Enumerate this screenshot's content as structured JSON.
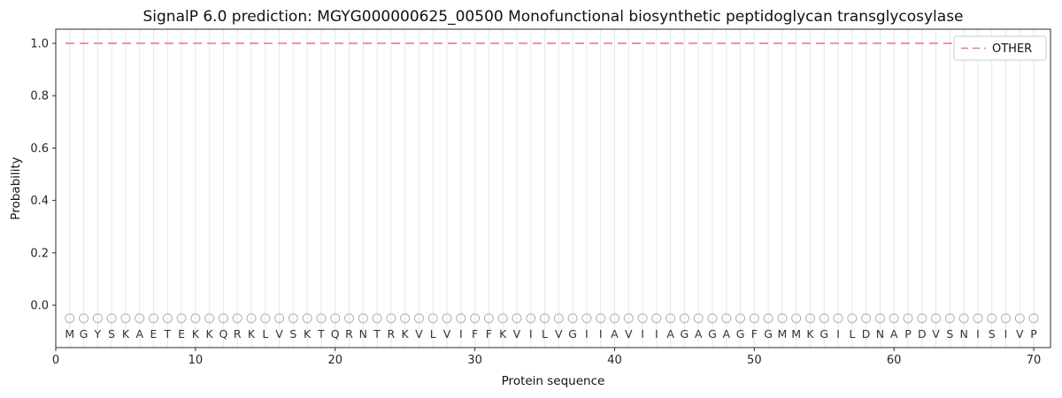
{
  "chart_data": {
    "type": "line",
    "title": "SignalP 6.0 prediction: MGYG000000625_00500 Monofunctional biosynthetic peptidoglycan transglycosylase",
    "xlabel": "Protein sequence",
    "ylabel": "Probability",
    "xlim": [
      0,
      71.2
    ],
    "ylim": [
      -0.162,
      1.054
    ],
    "xticks": [
      "0",
      "10",
      "20",
      "30",
      "40",
      "50",
      "60",
      "70"
    ],
    "yticks": [
      "0.0",
      "0.2",
      "0.4",
      "0.6",
      "0.8",
      "1.0"
    ],
    "grid": "vertical-line-per-residue",
    "legend_position": "upper right",
    "sequence": "MGYSKAETEKKQRKLVSKTQRNTRKVLVIFFKVILVGIIAVIIAGAGAGFGMMKGILDNAPDVSNISIVP",
    "n_residues": 70,
    "series": [
      {
        "name": "OTHER",
        "color": "#e98181",
        "line_style": "dashed",
        "x_start": 1,
        "values": [
          1.0,
          1.0,
          1.0,
          1.0,
          1.0,
          1.0,
          1.0,
          1.0,
          1.0,
          1.0,
          1.0,
          1.0,
          1.0,
          1.0,
          1.0,
          1.0,
          1.0,
          1.0,
          1.0,
          1.0,
          1.0,
          1.0,
          1.0,
          1.0,
          1.0,
          1.0,
          1.0,
          1.0,
          1.0,
          1.0,
          1.0,
          1.0,
          1.0,
          1.0,
          1.0,
          1.0,
          1.0,
          1.0,
          1.0,
          1.0,
          1.0,
          1.0,
          1.0,
          1.0,
          1.0,
          1.0,
          1.0,
          1.0,
          1.0,
          1.0,
          1.0,
          1.0,
          1.0,
          1.0,
          1.0,
          1.0,
          1.0,
          1.0,
          1.0,
          1.0,
          1.0,
          1.0,
          1.0,
          1.0,
          1.0,
          1.0,
          1.0,
          1.0,
          1.0,
          1.0
        ]
      }
    ],
    "marker_row": {
      "y": -0.05,
      "shape": "open-circle",
      "color": "#b0b0b0"
    },
    "colors": {
      "gridline": "#e8e8e8",
      "spine": "#2b2b2b",
      "tick_label": "#262626",
      "residue_letter": "#333333",
      "legend_border": "#cccccc",
      "background": "#ffffff"
    }
  }
}
